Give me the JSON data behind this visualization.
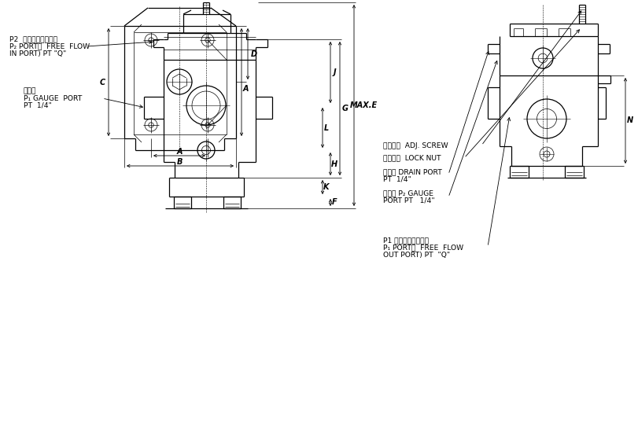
{
  "bg_color": "#ffffff",
  "line_color": "#000000",
  "lw": 0.9,
  "tlw": 0.5,
  "labels": {
    "adj_screw": "調節螺絲  ADJ. SCREW",
    "lock_nut": "固定螺帽  LOCK NUT",
    "drain_port": "淺流口 DRAIN PORT",
    "drain_pt": "PT  1/4\"",
    "p2_gauge": "測壓口 P₂ GAUGE",
    "p2_gauge_pt": "PORT PT   1/4\"",
    "p1_port_jp": "P1 口（自由流入口）",
    "p1_port_en1": "P₁ PORT（  FREE  FLOW",
    "p1_port_en2": "OUT PORT) PT  \"Q\"",
    "p2_port_jp": "P2  口（自由流入口）",
    "p2_port_en1": "P₂ PORT（  FREE  FLOW",
    "p2_port_en2": "IN PORT) PT \"Q\"",
    "p1_gauge_jp": "測壓口",
    "p1_gauge_en1": "P₁ GAUGE  PORT",
    "p1_gauge_en2": "PT  1/4\"",
    "dim_a": "A",
    "dim_b": "B",
    "dim_c": "C",
    "dim_d": "D",
    "dim_e": "MAX.E",
    "dim_f": "F",
    "dim_g": "G",
    "dim_h": "H",
    "dim_j": "J",
    "dim_k": "K",
    "dim_l": "L",
    "dim_n": "N"
  }
}
